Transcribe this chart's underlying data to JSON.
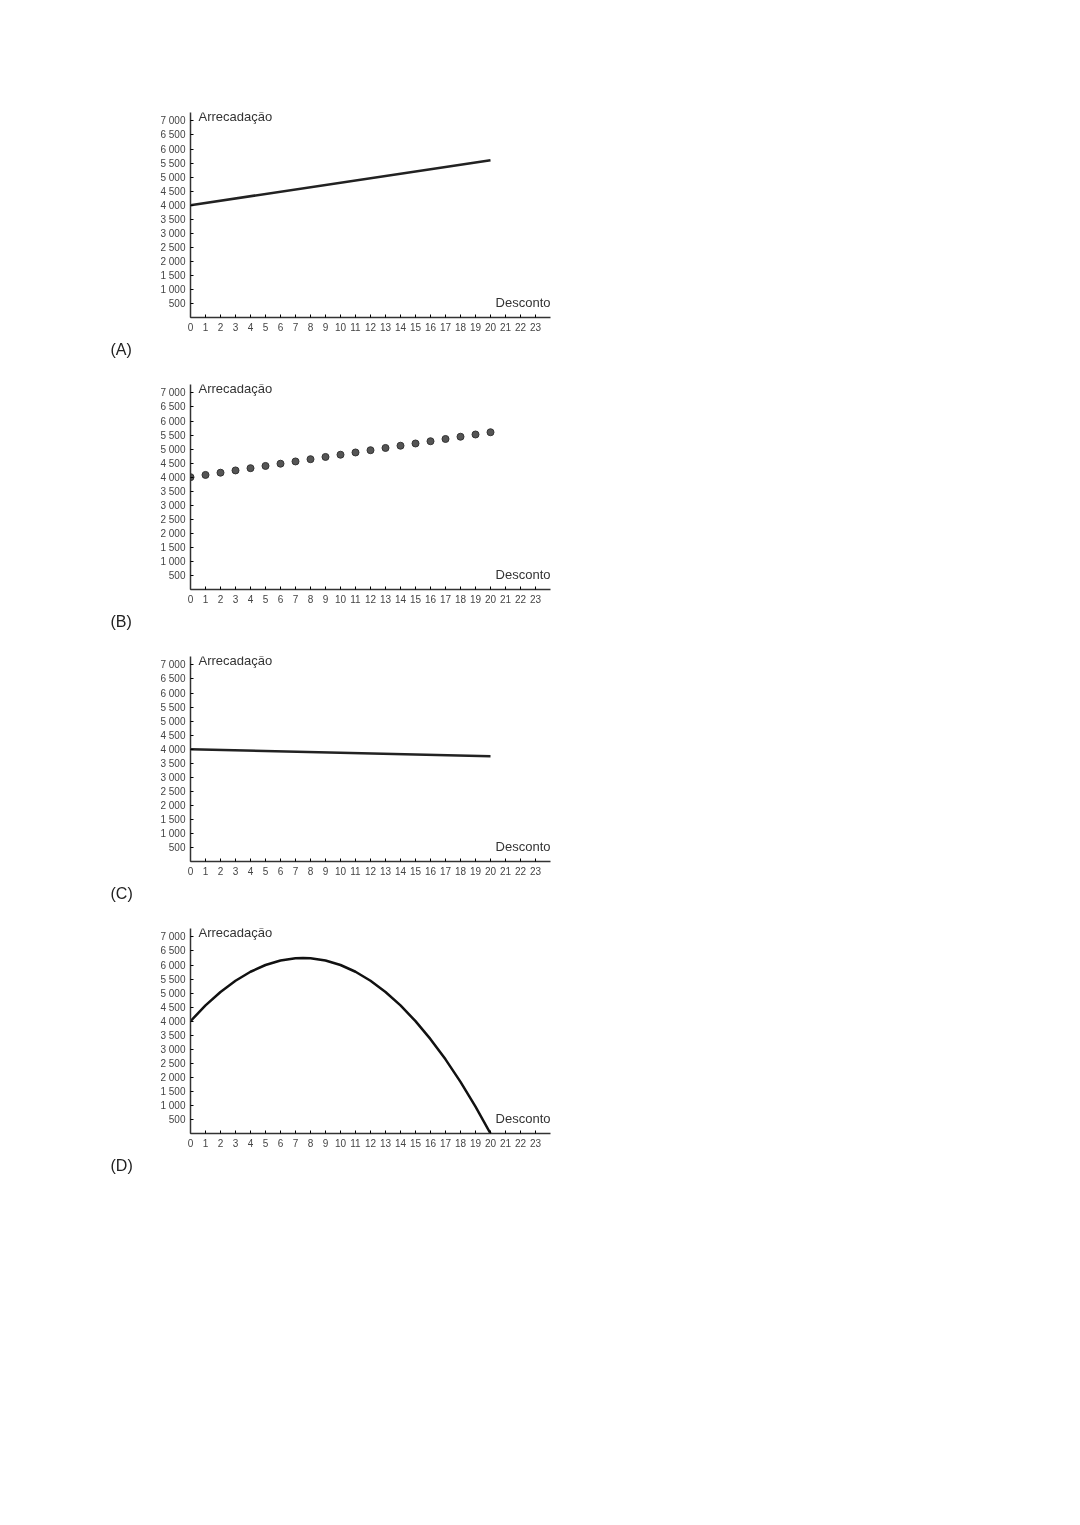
{
  "chart_data": [
    {
      "type": "line",
      "xlabel": "Desconto",
      "ylabel": "Arrecadação",
      "annotations": [
        "(A)"
      ],
      "color": "#222222",
      "line_style": "solid",
      "grid": false,
      "x": [
        0,
        20
      ],
      "values": [
        4000,
        5600
      ],
      "xlim": [
        0,
        24
      ],
      "ylim": [
        0,
        7300
      ],
      "xticks": [
        0,
        1,
        2,
        3,
        4,
        5,
        6,
        7,
        8,
        9,
        10,
        11,
        12,
        13,
        14,
        15,
        16,
        17,
        18,
        19,
        20,
        21,
        22,
        23
      ],
      "yticks": [
        500,
        {
          "value": 1000,
          "label": "1 000"
        },
        {
          "value": 1500,
          "label": "1 500"
        },
        {
          "value": 2000,
          "label": "2 000"
        },
        {
          "value": 2500,
          "label": "2 500"
        },
        {
          "value": 3000,
          "label": "3 000"
        },
        {
          "value": 3500,
          "label": "3 500"
        },
        {
          "value": 4000,
          "label": "4 000"
        },
        {
          "value": 4500,
          "label": "4 500"
        },
        {
          "value": 5000,
          "label": "5 000"
        },
        {
          "value": 5500,
          "label": "5 500"
        },
        {
          "value": 6000,
          "label": "6 000"
        },
        {
          "value": 6500,
          "label": "6 500"
        },
        {
          "value": 7000,
          "label": "7 000"
        }
      ]
    },
    {
      "type": "scatter",
      "xlabel": "Desconto",
      "ylabel": "Arrecadação",
      "annotations": [
        "(B)"
      ],
      "color": "#555555",
      "marker": "circle",
      "grid": false,
      "x": [
        0,
        1,
        2,
        3,
        4,
        5,
        6,
        7,
        8,
        9,
        10,
        11,
        12,
        13,
        14,
        15,
        16,
        17,
        18,
        19,
        20
      ],
      "values": [
        4000,
        4080,
        4160,
        4240,
        4320,
        4400,
        4480,
        4560,
        4640,
        4720,
        4800,
        4880,
        4960,
        5040,
        5120,
        5200,
        5280,
        5360,
        5440,
        5520,
        5600
      ],
      "xlim": [
        0,
        24
      ],
      "ylim": [
        0,
        7300
      ],
      "xticks": [
        0,
        1,
        2,
        3,
        4,
        5,
        6,
        7,
        8,
        9,
        10,
        11,
        12,
        13,
        14,
        15,
        16,
        17,
        18,
        19,
        20,
        21,
        22,
        23
      ],
      "yticks": [
        500,
        {
          "value": 1000,
          "label": "1 000"
        },
        {
          "value": 1500,
          "label": "1 500"
        },
        {
          "value": 2000,
          "label": "2 000"
        },
        {
          "value": 2500,
          "label": "2 500"
        },
        {
          "value": 3000,
          "label": "3 000"
        },
        {
          "value": 3500,
          "label": "3 500"
        },
        {
          "value": 4000,
          "label": "4 000"
        },
        {
          "value": 4500,
          "label": "4 500"
        },
        {
          "value": 5000,
          "label": "5 000"
        },
        {
          "value": 5500,
          "label": "5 500"
        },
        {
          "value": 6000,
          "label": "6 000"
        },
        {
          "value": 6500,
          "label": "6 500"
        },
        {
          "value": 7000,
          "label": "7 000"
        }
      ]
    },
    {
      "type": "line",
      "xlabel": "Desconto",
      "ylabel": "Arrecadação",
      "annotations": [
        "(C)"
      ],
      "color": "#222222",
      "line_style": "solid",
      "grid": false,
      "x": [
        0,
        20
      ],
      "values": [
        4000,
        3750
      ],
      "xlim": [
        0,
        24
      ],
      "ylim": [
        0,
        7300
      ],
      "xticks": [
        0,
        1,
        2,
        3,
        4,
        5,
        6,
        7,
        8,
        9,
        10,
        11,
        12,
        13,
        14,
        15,
        16,
        17,
        18,
        19,
        20,
        21,
        22,
        23
      ],
      "yticks": [
        500,
        {
          "value": 1000,
          "label": "1 000"
        },
        {
          "value": 1500,
          "label": "1 500"
        },
        {
          "value": 2000,
          "label": "2 000"
        },
        {
          "value": 2500,
          "label": "2 500"
        },
        {
          "value": 3000,
          "label": "3 000"
        },
        {
          "value": 3500,
          "label": "3 500"
        },
        {
          "value": 4000,
          "label": "4 000"
        },
        {
          "value": 4500,
          "label": "4 500"
        },
        {
          "value": 5000,
          "label": "5 000"
        },
        {
          "value": 5500,
          "label": "5 500"
        },
        {
          "value": 6000,
          "label": "6 000"
        },
        {
          "value": 6500,
          "label": "6 500"
        },
        {
          "value": 7000,
          "label": "7 000"
        }
      ]
    },
    {
      "type": "line",
      "xlabel": "Desconto",
      "ylabel": "Arrecadação",
      "annotations": [
        "(D)"
      ],
      "color": "#111111",
      "line_style": "solid",
      "grid": false,
      "x": [
        0,
        1,
        2,
        3,
        4,
        5,
        6,
        7,
        7.5,
        8,
        9,
        10,
        11,
        12,
        13,
        14,
        15,
        16,
        17,
        18,
        19,
        20
      ],
      "values": [
        4000,
        4560,
        5040,
        5440,
        5760,
        6000,
        6160,
        6240,
        6250,
        6240,
        6160,
        6000,
        5760,
        5440,
        5040,
        4560,
        4000,
        3360,
        2640,
        1840,
        960,
        0
      ],
      "xlim": [
        0,
        24
      ],
      "ylim": [
        0,
        7300
      ],
      "xticks": [
        0,
        1,
        2,
        3,
        4,
        5,
        6,
        7,
        8,
        9,
        10,
        11,
        12,
        13,
        14,
        15,
        16,
        17,
        18,
        19,
        20,
        21,
        22,
        23
      ],
      "yticks": [
        500,
        {
          "value": 1000,
          "label": "1 000"
        },
        {
          "value": 1500,
          "label": "1 500"
        },
        {
          "value": 2000,
          "label": "2 000"
        },
        {
          "value": 2500,
          "label": "2 500"
        },
        {
          "value": 3000,
          "label": "3 000"
        },
        {
          "value": 3500,
          "label": "3 500"
        },
        {
          "value": 4000,
          "label": "4 000"
        },
        {
          "value": 4500,
          "label": "4 500"
        },
        {
          "value": 5000,
          "label": "5 000"
        },
        {
          "value": 5500,
          "label": "5 500"
        },
        {
          "value": 6000,
          "label": "6 000"
        },
        {
          "value": 6500,
          "label": "6 500"
        },
        {
          "value": 7000,
          "label": "7 000"
        }
      ]
    }
  ]
}
